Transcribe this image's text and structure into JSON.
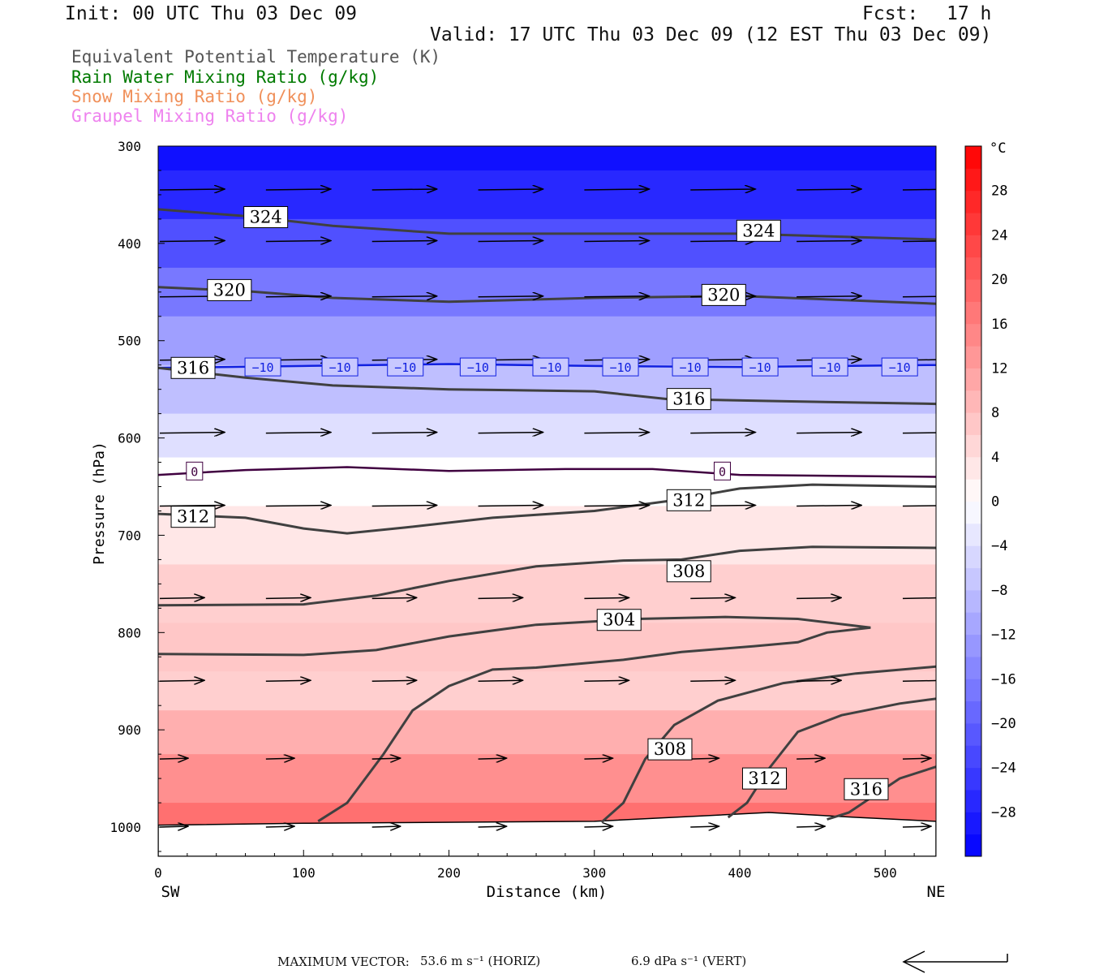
{
  "header": {
    "init": "Init: 00 UTC Thu 03 Dec 09",
    "fcst_label": "Fcst:",
    "fcst_value": "17 h",
    "valid": "Valid: 17 UTC Thu 03 Dec 09 (12 EST Thu 03 Dec 09)"
  },
  "legend": [
    {
      "text": "Equivalent Potential Temperature (K)",
      "color": "#555555"
    },
    {
      "text": "Rain Water Mixing Ratio (g/kg)",
      "color": "#007a00"
    },
    {
      "text": "Snow Mixing Ratio (g/kg)",
      "color": "#f0905a"
    },
    {
      "text": "Graupel Mixing Ratio (g/kg)",
      "color": "#ee82ee"
    }
  ],
  "footer": {
    "max_vector": "MAXIMUM VECTOR:",
    "horiz": "53.6 m s⁻¹ (HORIZ)",
    "vert": "6.9 dPa s⁻¹ (VERT)"
  },
  "chart_data": {
    "type": "heatmap",
    "xlabel": "Distance (km)",
    "ylabel": "Pressure (hPa)",
    "x_left_label": "SW",
    "x_right_label": "NE",
    "xlim": [
      0,
      535
    ],
    "ylim": [
      1030,
      300
    ],
    "x_ticks": [
      0,
      100,
      200,
      300,
      400,
      500
    ],
    "y_ticks": [
      300,
      400,
      500,
      600,
      700,
      800,
      900,
      1000
    ],
    "colorbar": {
      "unit": "°C",
      "range": [
        -32,
        32
      ],
      "ticks": [
        28,
        24,
        20,
        16,
        12,
        8,
        4,
        0,
        -4,
        -8,
        -12,
        -16,
        -20,
        -24,
        -28
      ]
    },
    "temperature_isotherms": [
      {
        "value": -10,
        "label": "−10",
        "label_x": [
          72,
          125,
          170,
          220,
          270,
          318,
          366,
          414,
          462,
          510
        ],
        "points": [
          [
            0,
            528
          ],
          [
            100,
            526
          ],
          [
            200,
            524
          ],
          [
            300,
            526
          ],
          [
            400,
            527
          ],
          [
            535,
            525
          ]
        ]
      },
      {
        "value": 0,
        "label": "0",
        "label_x": [
          25,
          388
        ],
        "points": [
          [
            0,
            638
          ],
          [
            60,
            633
          ],
          [
            130,
            630
          ],
          [
            200,
            634
          ],
          [
            280,
            632
          ],
          [
            340,
            632
          ],
          [
            400,
            638
          ],
          [
            535,
            640
          ]
        ]
      }
    ],
    "theta_e_contours": [
      {
        "value": 324,
        "label": "324",
        "label_pos": [
          [
            74,
            373
          ],
          [
            413,
            387
          ]
        ],
        "points": [
          [
            0,
            365
          ],
          [
            60,
            372
          ],
          [
            120,
            382
          ],
          [
            200,
            390
          ],
          [
            300,
            390
          ],
          [
            400,
            390
          ],
          [
            535,
            396
          ]
        ]
      },
      {
        "value": 320,
        "label": "320",
        "label_pos": [
          [
            49,
            448
          ],
          [
            389,
            453
          ]
        ],
        "points": [
          [
            0,
            445
          ],
          [
            60,
            449
          ],
          [
            120,
            456
          ],
          [
            200,
            460
          ],
          [
            300,
            456
          ],
          [
            400,
            454
          ],
          [
            535,
            462
          ]
        ]
      },
      {
        "value": 316,
        "label": "316",
        "label_pos": [
          [
            24,
            528
          ],
          [
            365,
            560
          ]
        ],
        "points": [
          [
            0,
            528
          ],
          [
            60,
            538
          ],
          [
            120,
            546
          ],
          [
            200,
            550
          ],
          [
            300,
            552
          ],
          [
            350,
            560
          ],
          [
            420,
            562
          ],
          [
            535,
            565
          ]
        ]
      },
      {
        "value": 312,
        "label": "312",
        "label_pos": [
          [
            24,
            681
          ],
          [
            365,
            664
          ]
        ],
        "points": [
          [
            0,
            678
          ],
          [
            60,
            682
          ],
          [
            100,
            693
          ],
          [
            130,
            698
          ],
          [
            170,
            692
          ],
          [
            230,
            682
          ],
          [
            300,
            675
          ],
          [
            350,
            665
          ],
          [
            400,
            652
          ],
          [
            450,
            648
          ],
          [
            535,
            650
          ]
        ]
      },
      {
        "value": 308,
        "label": "308",
        "label_pos": [
          [
            365,
            737
          ]
        ],
        "points": [
          [
            0,
            772
          ],
          [
            100,
            771
          ],
          [
            150,
            762
          ],
          [
            200,
            747
          ],
          [
            260,
            732
          ],
          [
            320,
            726
          ],
          [
            360,
            725
          ],
          [
            400,
            716
          ],
          [
            450,
            712
          ],
          [
            535,
            713
          ]
        ]
      },
      {
        "value": 304,
        "label": "304",
        "label_pos": [
          [
            317,
            787
          ]
        ],
        "points": [
          [
            0,
            822
          ],
          [
            100,
            823
          ],
          [
            150,
            818
          ],
          [
            200,
            804
          ],
          [
            260,
            792
          ],
          [
            330,
            786
          ],
          [
            390,
            784
          ],
          [
            440,
            786
          ],
          [
            490,
            795
          ],
          [
            460,
            800
          ],
          [
            440,
            810
          ],
          [
            410,
            814
          ],
          [
            360,
            820
          ],
          [
            320,
            828
          ],
          [
            260,
            836
          ],
          [
            230,
            838
          ],
          [
            200,
            855
          ],
          [
            175,
            880
          ],
          [
            155,
            925
          ],
          [
            130,
            975
          ],
          [
            110,
            994
          ]
        ]
      },
      {
        "value": 308,
        "label": "308",
        "label_pos": [
          [
            352,
            920
          ]
        ],
        "points": [
          [
            305,
            995
          ],
          [
            320,
            975
          ],
          [
            335,
            930
          ],
          [
            355,
            895
          ],
          [
            385,
            870
          ],
          [
            430,
            852
          ],
          [
            480,
            842
          ],
          [
            535,
            835
          ]
        ]
      },
      {
        "value": 312,
        "label": "312",
        "label_pos": [
          [
            417,
            950
          ]
        ],
        "points": [
          [
            392,
            990
          ],
          [
            405,
            975
          ],
          [
            420,
            940
          ],
          [
            440,
            902
          ],
          [
            470,
            885
          ],
          [
            510,
            873
          ],
          [
            535,
            868
          ]
        ]
      },
      {
        "value": 316,
        "label": "316",
        "label_pos": [
          [
            487,
            961
          ]
        ],
        "points": [
          [
            460,
            992
          ],
          [
            475,
            985
          ],
          [
            490,
            970
          ],
          [
            510,
            950
          ],
          [
            535,
            938
          ]
        ]
      }
    ],
    "temperature_field": [
      {
        "p": 300,
        "t": -30
      },
      {
        "p": 350,
        "t": -27
      },
      {
        "p": 400,
        "t": -22
      },
      {
        "p": 450,
        "t": -17
      },
      {
        "p": 500,
        "t": -12
      },
      {
        "p": 550,
        "t": -8
      },
      {
        "p": 600,
        "t": -4
      },
      {
        "p": 640,
        "t": 0
      },
      {
        "p": 700,
        "t": 3
      },
      {
        "p": 760,
        "t": 6
      },
      {
        "p": 820,
        "t": 7
      },
      {
        "p": 860,
        "t": 6
      },
      {
        "p": 900,
        "t": 10
      },
      {
        "p": 950,
        "t": 14
      },
      {
        "p": 1000,
        "t": 18
      }
    ],
    "wind_rows_p": [
      345,
      398,
      455,
      520,
      595,
      670,
      765,
      850,
      930,
      1000
    ],
    "wind_cols_km": [
      0,
      73,
      146,
      219,
      292,
      365,
      438,
      511
    ]
  }
}
